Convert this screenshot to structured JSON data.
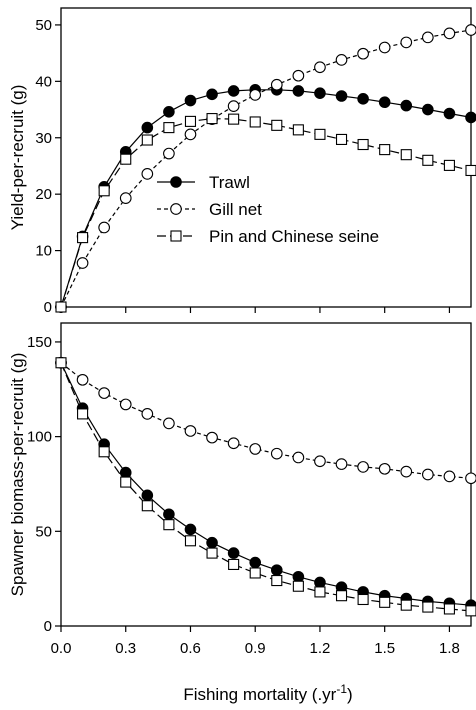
{
  "chart_data": [
    {
      "type": "line",
      "ylabel": "Yield-per-recruit (g)",
      "ylim": [
        0,
        53
      ],
      "xlim": [
        0,
        1.9
      ],
      "yticks": [
        "0",
        "10",
        "20",
        "30",
        "40",
        "50"
      ],
      "ytick_values": [
        0,
        10,
        20,
        30,
        40,
        50
      ],
      "legend_position": "center",
      "x": [
        0.0,
        0.1,
        0.2,
        0.3,
        0.4,
        0.5,
        0.6,
        0.7,
        0.8,
        0.9,
        1.0,
        1.1,
        1.2,
        1.3,
        1.4,
        1.5,
        1.6,
        1.7,
        1.8,
        1.9
      ],
      "series": [
        {
          "name": "Trawl",
          "marker": "filled-circle",
          "line": "solid",
          "values": [
            0,
            12.5,
            21.3,
            27.5,
            31.8,
            34.6,
            36.6,
            37.7,
            38.3,
            38.5,
            38.5,
            38.3,
            37.9,
            37.4,
            36.9,
            36.3,
            35.7,
            35.0,
            34.3,
            33.6
          ]
        },
        {
          "name": "Gill net",
          "marker": "open-circle",
          "line": "dashed",
          "values": [
            0,
            7.8,
            14.1,
            19.3,
            23.6,
            27.2,
            30.6,
            33.3,
            35.6,
            37.6,
            39.4,
            41.0,
            42.5,
            43.8,
            44.9,
            46.0,
            46.9,
            47.8,
            48.5,
            49.1
          ]
        },
        {
          "name": "Pin and Chinese seine",
          "marker": "open-square",
          "line": "long-dash",
          "values": [
            0,
            12.3,
            20.6,
            26.2,
            29.6,
            31.8,
            32.9,
            33.4,
            33.3,
            32.8,
            32.2,
            31.4,
            30.6,
            29.7,
            28.8,
            27.9,
            27.0,
            26.0,
            25.1,
            24.2
          ]
        }
      ]
    },
    {
      "type": "line",
      "ylabel": "Spawner biomass-per-recruit (g)",
      "xlabel": "Fishing mortality (.yr",
      "xlabel_superscript": "-1",
      "xlabel_suffix": ")",
      "ylim": [
        0,
        160
      ],
      "xlim": [
        0,
        1.9
      ],
      "yticks": [
        "0",
        "50",
        "100",
        "150"
      ],
      "ytick_values": [
        0,
        50,
        100,
        150
      ],
      "xticks": [
        "0.0",
        "0.3",
        "0.6",
        "0.9",
        "1.2",
        "1.5",
        "1.8"
      ],
      "xtick_values": [
        0,
        0.3,
        0.6,
        0.9,
        1.2,
        1.5,
        1.8
      ],
      "x": [
        0.0,
        0.1,
        0.2,
        0.3,
        0.4,
        0.5,
        0.6,
        0.7,
        0.8,
        0.9,
        1.0,
        1.1,
        1.2,
        1.3,
        1.4,
        1.5,
        1.6,
        1.7,
        1.8,
        1.9
      ],
      "series": [
        {
          "name": "Trawl",
          "marker": "filled-circle",
          "line": "solid",
          "values": [
            139,
            115,
            96,
            81,
            69,
            59,
            51,
            44,
            38.5,
            33.5,
            29.5,
            26,
            23,
            20.5,
            18,
            16,
            14.5,
            13,
            12,
            11
          ]
        },
        {
          "name": "Gill net",
          "marker": "open-circle",
          "line": "dashed",
          "values": [
            139,
            130,
            123,
            117,
            112,
            107,
            103,
            99.5,
            96.5,
            93.5,
            91,
            89,
            87,
            85.5,
            84,
            83,
            81.5,
            80,
            79,
            78
          ]
        },
        {
          "name": "Pin and Chinese seine",
          "marker": "open-square",
          "line": "long-dash",
          "values": [
            139,
            112,
            92,
            76,
            63.5,
            53.5,
            45,
            38.5,
            32.5,
            28,
            24,
            21,
            18,
            16,
            14,
            12.5,
            11,
            10,
            9,
            8
          ]
        }
      ]
    }
  ]
}
